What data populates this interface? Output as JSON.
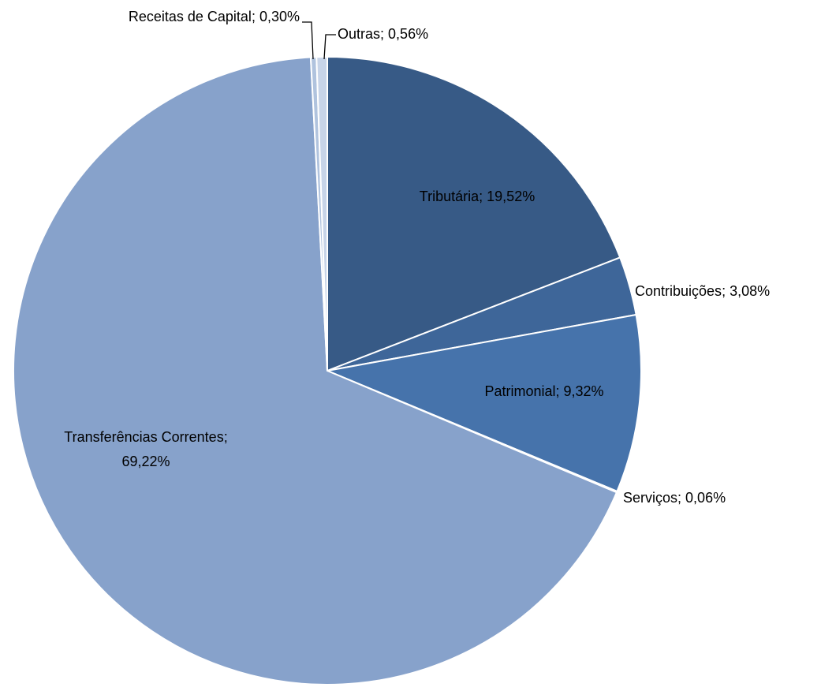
{
  "chart_data": {
    "type": "pie",
    "categories": [
      "Tributária",
      "Contribuições",
      "Patrimonial",
      "Serviços",
      "Transferências Correntes",
      "Receitas de Capital",
      "Outras"
    ],
    "values": [
      19.52,
      3.08,
      9.32,
      0.06,
      69.22,
      0.3,
      0.56
    ],
    "value_labels": [
      "19,52%",
      "3,08%",
      "9,32%",
      "0,06%",
      "69,22%",
      "0,30%",
      "0,56%"
    ],
    "label_separator": ";",
    "colors": [
      "#375a86",
      "#3e6699",
      "#4673ab",
      "#5b82b5",
      "#87a2cb",
      "#b0c3de",
      "#c7d4e8"
    ]
  }
}
